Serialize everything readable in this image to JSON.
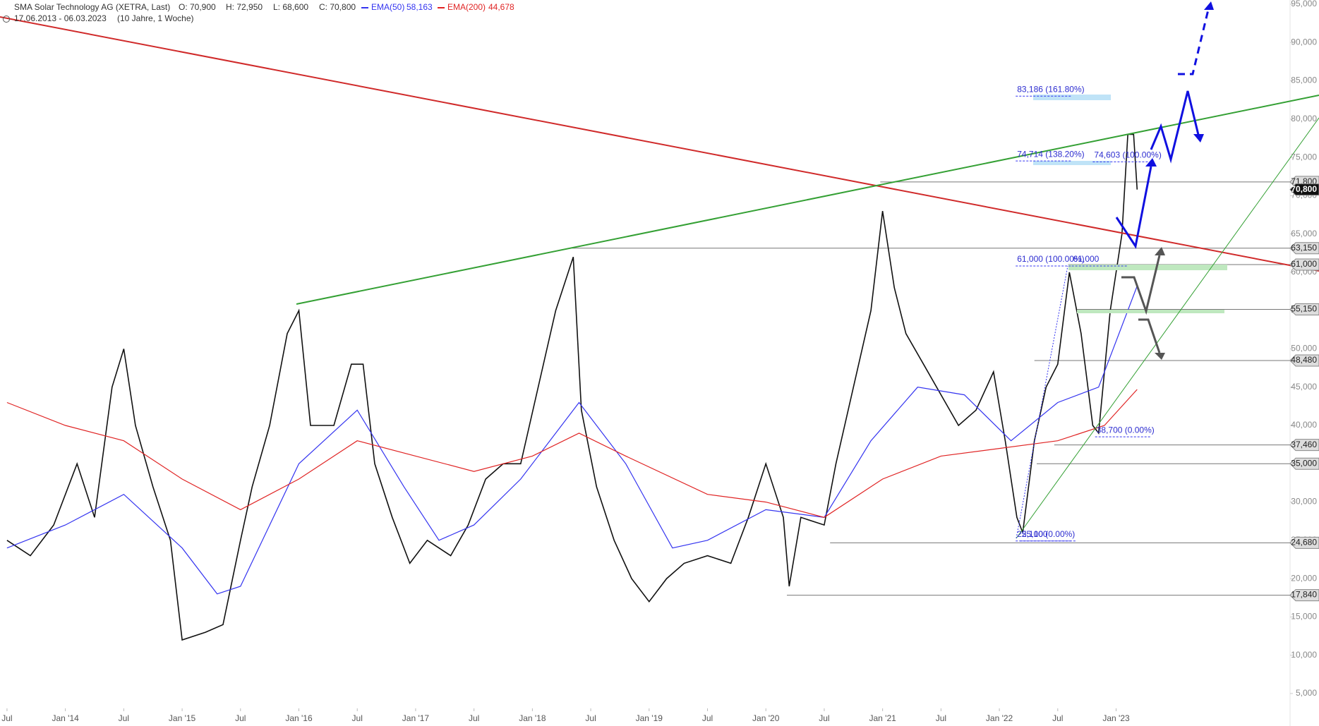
{
  "header": {
    "title": "SMA Solar Technology AG (XETRA, Last)",
    "open": "O: 70,900",
    "high": "H: 72,950",
    "low": "L: 68,600",
    "close": "C: 70,800",
    "ema50_value": "58,163",
    "ema200_value": "44,678",
    "range": "17.06.2013 - 06.03.2023",
    "period": "(10 Jahre, 1 Woche)"
  },
  "chart_data": {
    "type": "line",
    "xlim": [
      2013.44,
      2024.49
    ],
    "ylim": [
      3.43,
      95.55
    ],
    "xticks": [
      {
        "value": 2013.5,
        "label": "Jul"
      },
      {
        "value": 2014,
        "label": "Jan '14"
      },
      {
        "value": 2014.5,
        "label": "Jul"
      },
      {
        "value": 2015,
        "label": "Jan '15"
      },
      {
        "value": 2015.5,
        "label": "Jul"
      },
      {
        "value": 2016,
        "label": "Jan '16"
      },
      {
        "value": 2016.5,
        "label": "Jul"
      },
      {
        "value": 2017,
        "label": "Jan '17"
      },
      {
        "value": 2017.5,
        "label": "Jul"
      },
      {
        "value": 2018,
        "label": "Jan '18"
      },
      {
        "value": 2018.5,
        "label": "Jul"
      },
      {
        "value": 2019,
        "label": "Jan '19"
      },
      {
        "value": 2019.5,
        "label": "Jul"
      },
      {
        "value": 2020,
        "label": "Jan '20"
      },
      {
        "value": 2020.5,
        "label": "Jul"
      },
      {
        "value": 2021,
        "label": "Jan '21"
      },
      {
        "value": 2021.5,
        "label": "Jul"
      },
      {
        "value": 2022,
        "label": "Jan '22"
      },
      {
        "value": 2022.5,
        "label": "Jul"
      },
      {
        "value": 2023,
        "label": "Jan '23"
      }
    ],
    "yticks": [
      {
        "value": 5,
        "label": "5,000"
      },
      {
        "value": 10,
        "label": "10,000"
      },
      {
        "value": 15,
        "label": "15,000"
      },
      {
        "value": 20,
        "label": "20,000"
      },
      {
        "value": 25,
        "label": "25,000"
      },
      {
        "value": 30,
        "label": "30,000"
      },
      {
        "value": 35,
        "label": "35,000"
      },
      {
        "value": 40,
        "label": "40,000"
      },
      {
        "value": 45,
        "label": "45,000"
      },
      {
        "value": 50,
        "label": "50,000"
      },
      {
        "value": 55,
        "label": "55,000"
      },
      {
        "value": 60,
        "label": "60,000"
      },
      {
        "value": 65,
        "label": "65,000"
      },
      {
        "value": 70,
        "label": "70,000"
      },
      {
        "value": 75,
        "label": "75,000"
      },
      {
        "value": 80,
        "label": "80,000"
      },
      {
        "value": 85,
        "label": "85,000"
      },
      {
        "value": 90,
        "label": "90,000"
      },
      {
        "value": 95,
        "label": "95,000"
      }
    ],
    "series": [
      {
        "color": "#111111",
        "x": [
          2013.5,
          2013.7,
          2013.9,
          2014.1,
          2014.25,
          2014.4,
          2014.5,
          2014.6,
          2014.75,
          2014.9,
          2015.0,
          2015.2,
          2015.35,
          2015.5,
          2015.6,
          2015.75,
          2015.9,
          2016.0,
          2016.1,
          2016.3,
          2016.45,
          2016.55,
          2016.65,
          2016.8,
          2016.95,
          2017.1,
          2017.3,
          2017.45,
          2017.6,
          2017.75,
          2017.9,
          2018.05,
          2018.2,
          2018.35,
          2018.42,
          2018.55,
          2018.7,
          2018.85,
          2019.0,
          2019.15,
          2019.3,
          2019.5,
          2019.7,
          2019.85,
          2020.0,
          2020.15,
          2020.2,
          2020.3,
          2020.5,
          2020.6,
          2020.75,
          2020.9,
          2021.0,
          2021.1,
          2021.2,
          2021.35,
          2021.5,
          2021.65,
          2021.8,
          2021.95,
          2022.05,
          2022.15,
          2022.2,
          2022.3,
          2022.4,
          2022.5,
          2022.6,
          2022.7,
          2022.8,
          2022.85,
          2022.95,
          2023.05,
          2023.1,
          2023.15,
          2023.18
        ],
        "values": [
          25,
          23,
          27,
          35,
          28,
          45,
          50,
          40,
          32,
          25,
          12,
          13,
          14,
          25,
          32,
          40,
          52,
          55,
          40,
          40,
          48,
          48,
          35,
          28,
          22,
          25,
          23,
          27,
          33,
          35,
          35,
          45,
          55,
          62,
          42,
          32,
          25,
          20,
          17,
          20,
          22,
          23,
          22,
          28,
          35,
          28,
          19,
          28,
          27,
          35,
          45,
          55,
          68,
          58,
          52,
          48,
          44,
          40,
          42,
          47,
          38,
          28,
          26,
          38,
          45,
          48,
          60,
          52,
          40,
          39,
          55,
          65,
          78,
          78,
          70.8
        ]
      },
      {
        "name": "EMA(50)",
        "color": "#3434f0",
        "x": [
          2013.5,
          2014.0,
          2014.5,
          2015.0,
          2015.3,
          2015.5,
          2016.0,
          2016.5,
          2016.9,
          2017.2,
          2017.5,
          2017.9,
          2018.4,
          2018.8,
          2019.2,
          2019.5,
          2020.0,
          2020.5,
          2020.9,
          2021.3,
          2021.7,
          2022.1,
          2022.5,
          2022.85,
          2023.18
        ],
        "values": [
          24,
          27,
          31,
          24,
          18,
          19,
          35,
          42,
          32,
          25,
          27,
          33,
          43,
          35,
          24,
          25,
          29,
          28,
          38,
          45,
          44,
          38,
          43,
          45,
          58.2
        ]
      },
      {
        "name": "EMA(200)",
        "color": "#e02424",
        "x": [
          2013.5,
          2014.0,
          2014.5,
          2015.0,
          2015.5,
          2016.0,
          2016.5,
          2017.0,
          2017.5,
          2018.0,
          2018.4,
          2018.8,
          2019.5,
          2020.0,
          2020.5,
          2021.0,
          2021.5,
          2022.0,
          2022.5,
          2022.9,
          2023.18
        ],
        "values": [
          43,
          40,
          38,
          33,
          29,
          33,
          38,
          36,
          34,
          36,
          39,
          36,
          31,
          30,
          28,
          33,
          36,
          37,
          38,
          40,
          44.7
        ]
      }
    ],
    "price_levels": [
      {
        "value": 71.8,
        "label": "71,800",
        "start": 2020.98
      },
      {
        "value": 70.8,
        "label": "70,800",
        "current": true
      },
      {
        "value": 63.15,
        "label": "63,150",
        "start": 2018.34
      },
      {
        "value": 61,
        "label": "61,000",
        "start": 2022.59
      },
      {
        "value": 55.15,
        "label": "55,150",
        "start": 2022.66
      },
      {
        "value": 48.48,
        "label": "48,480",
        "start": 2022.3
      },
      {
        "value": 37.46,
        "label": "37,460",
        "start": 2022.47
      },
      {
        "value": 35,
        "label": "35,000",
        "start": 2022.32
      },
      {
        "value": 24.68,
        "label": "24,680",
        "start": 2020.55
      },
      {
        "value": 17.84,
        "label": "17,840",
        "start": 2020.18
      }
    ],
    "annotations": [
      {
        "value": 83.186,
        "label": "83,186 (161.80%)",
        "x": 2022.14
      },
      {
        "value": 74.714,
        "label": "74,714 (138.20%)",
        "x": 2022.14
      },
      {
        "value": 74.603,
        "label": "74,603 (100.00%)",
        "x": 2022.8
      },
      {
        "value": 61,
        "label": "61,000 (100.00%)",
        "x": 2022.14
      },
      {
        "value": 61,
        "label": "61,000",
        "x": 2022.62
      },
      {
        "value": 38.7,
        "label": "38,700 (0.00%)",
        "x": 2022.82
      },
      {
        "value": 25.1,
        "label": "25,100 (0.00%)",
        "x": 2022.14
      },
      {
        "value": 25.1,
        "label": "25,100",
        "x": 2022.18
      }
    ]
  }
}
